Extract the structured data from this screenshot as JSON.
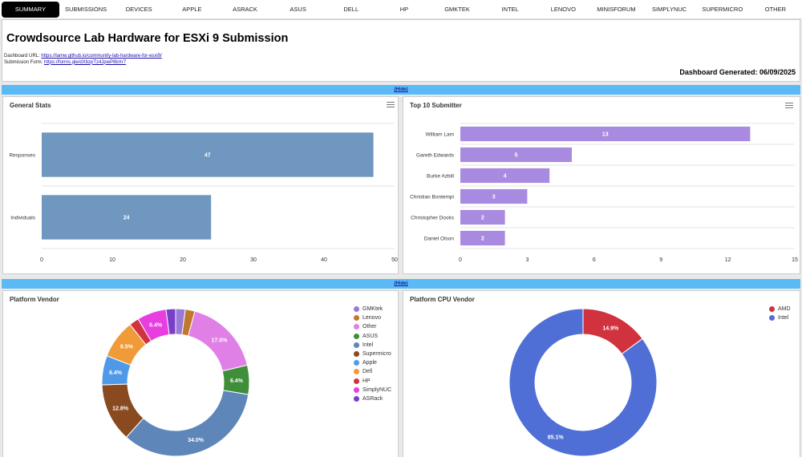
{
  "nav": {
    "tabs": [
      "SUMMARY",
      "SUBMISSIONS",
      "DEVICES",
      "APPLE",
      "ASRACK",
      "ASUS",
      "DELL",
      "HP",
      "GMKTEK",
      "INTEL",
      "LENOVO",
      "MINISFORUM",
      "SIMPLYNUC",
      "SUPERMICRO",
      "OTHER"
    ],
    "active": "SUMMARY"
  },
  "header": {
    "title": "Crowdsource Lab Hardware for ESXi 9 Submission",
    "dashboard_url_label": "Dashboard URL:",
    "dashboard_url": "https://lamw.github.io/community-lab-hardware-for-esxi9/",
    "submission_form_label": "Submission Form:",
    "submission_form_url": "https://forms.gle/dXbzpTz4JpwP8bXr7",
    "generated": "Dashboard Generated: 06/09/2025"
  },
  "hide_label": "(Hide)",
  "colors": {
    "bar_blue": "#6f97c0",
    "bar_purple": "#a88be0",
    "hide_bar": "#5bb9f5",
    "amd": "#d0323e",
    "intel": "#4f6fd6"
  },
  "chart_data": [
    {
      "id": "general-stats",
      "type": "bar",
      "orientation": "horizontal",
      "title": "General Stats",
      "categories": [
        "Responses",
        "Individuals"
      ],
      "values": [
        47,
        24
      ],
      "xlim": [
        0,
        50
      ],
      "ticks": [
        0,
        10,
        20,
        30,
        40,
        50
      ],
      "grid": true
    },
    {
      "id": "top-submitters",
      "type": "bar",
      "orientation": "horizontal",
      "title": "Top 10 Submitter",
      "categories": [
        "William Lam",
        "Gareth Edwards",
        "Burke Azbill",
        "Christian Bontempi",
        "Christopher Dooks",
        "Daniel Olson"
      ],
      "values": [
        13,
        5,
        4,
        3,
        2,
        2
      ],
      "xlim": [
        0,
        15
      ],
      "ticks": [
        0,
        3,
        6,
        9,
        12,
        15
      ],
      "grid": true
    },
    {
      "id": "platform-vendor",
      "type": "pie",
      "donut": true,
      "title": "Platform Vendor",
      "legend_position": "right",
      "slices": [
        {
          "name": "GMKtek",
          "value": 2.1,
          "color": "#9a79d8",
          "label": ""
        },
        {
          "name": "Lenovo",
          "value": 2.1,
          "color": "#c0782c",
          "label": ""
        },
        {
          "name": "Other",
          "value": 17.0,
          "color": "#e07fe6",
          "label": "17.0%"
        },
        {
          "name": "ASUS",
          "value": 6.4,
          "color": "#3e8e3a",
          "label": "6.4%"
        },
        {
          "name": "Intel",
          "value": 34.0,
          "color": "#5f86b8",
          "label": "34.0%"
        },
        {
          "name": "Supermicro",
          "value": 12.8,
          "color": "#8a4a1f",
          "label": "12.8%"
        },
        {
          "name": "Apple",
          "value": 6.4,
          "color": "#4f9ae8",
          "label": "6.4%"
        },
        {
          "name": "Dell",
          "value": 8.5,
          "color": "#f09a38",
          "label": "8.5%"
        },
        {
          "name": "HP",
          "value": 2.1,
          "color": "#d0323e",
          "label": ""
        },
        {
          "name": "SimplyNUC",
          "value": 6.4,
          "color": "#e83ee0",
          "label": "6.4%"
        },
        {
          "name": "ASRack",
          "value": 2.1,
          "color": "#7a3fc9",
          "label": ""
        }
      ]
    },
    {
      "id": "platform-cpu-vendor",
      "type": "pie",
      "donut": true,
      "title": "Platform CPU Vendor",
      "legend_position": "top-right",
      "slices": [
        {
          "name": "AMD",
          "value": 14.9,
          "color": "#d0323e",
          "label": "14.9%"
        },
        {
          "name": "Intel",
          "value": 85.1,
          "color": "#4f6fd6",
          "label": "85.1%"
        }
      ]
    }
  ]
}
